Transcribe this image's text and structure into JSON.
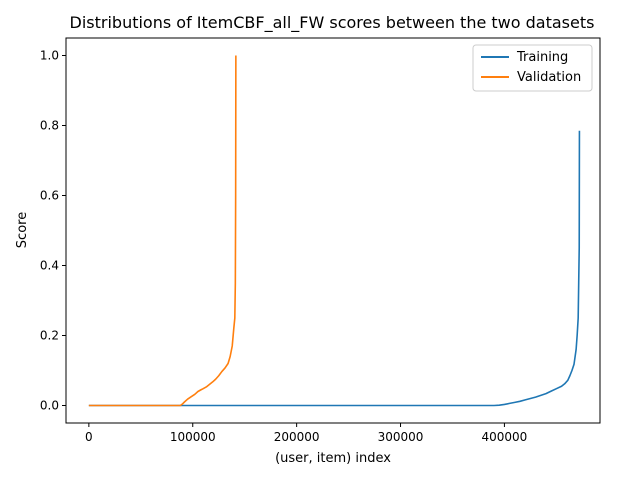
{
  "chart_data": {
    "type": "line",
    "title": "Distributions of ItemCBF_all_FW scores between the two datasets",
    "xlabel": "(user, item) index",
    "ylabel": "Score",
    "xlim": [
      -22000,
      492000
    ],
    "ylim": [
      -0.05,
      1.05
    ],
    "xticks": [
      0,
      100000,
      200000,
      300000,
      400000
    ],
    "xtick_labels": [
      "0",
      "100000",
      "200000",
      "300000",
      "400000"
    ],
    "yticks": [
      0.0,
      0.2,
      0.4,
      0.6,
      0.8,
      1.0
    ],
    "ytick_labels": [
      "0.0",
      "0.2",
      "0.4",
      "0.6",
      "0.8",
      "1.0"
    ],
    "grid": false,
    "legend": "top-right",
    "series": [
      {
        "name": "Training",
        "color": "#1f77b4",
        "x": [
          0,
          390000,
          395000,
          400000,
          405000,
          410000,
          415000,
          420000,
          425000,
          430000,
          435000,
          440000,
          445000,
          450000,
          455000,
          458000,
          461000,
          463000,
          465000,
          467000,
          469000,
          470000,
          471000,
          471500,
          472000,
          472200
        ],
        "y": [
          0.0,
          0.0,
          0.001,
          0.003,
          0.006,
          0.009,
          0.012,
          0.016,
          0.02,
          0.024,
          0.029,
          0.034,
          0.041,
          0.048,
          0.055,
          0.062,
          0.072,
          0.085,
          0.1,
          0.118,
          0.16,
          0.2,
          0.25,
          0.35,
          0.45,
          0.785
        ]
      },
      {
        "name": "Validation",
        "color": "#ff7f0e",
        "x": [
          0,
          88000,
          90000,
          92000,
          95000,
          98000,
          100000,
          102000,
          105000,
          108000,
          110000,
          113000,
          116000,
          119000,
          122000,
          125000,
          128000,
          131000,
          134000,
          136000,
          138000,
          139500,
          140500,
          141000,
          141300,
          141500
        ],
        "y": [
          0.0,
          0.0,
          0.004,
          0.01,
          0.018,
          0.024,
          0.028,
          0.032,
          0.04,
          0.045,
          0.048,
          0.053,
          0.06,
          0.067,
          0.075,
          0.085,
          0.097,
          0.107,
          0.12,
          0.14,
          0.17,
          0.22,
          0.25,
          0.35,
          0.6,
          1.0
        ]
      }
    ]
  }
}
